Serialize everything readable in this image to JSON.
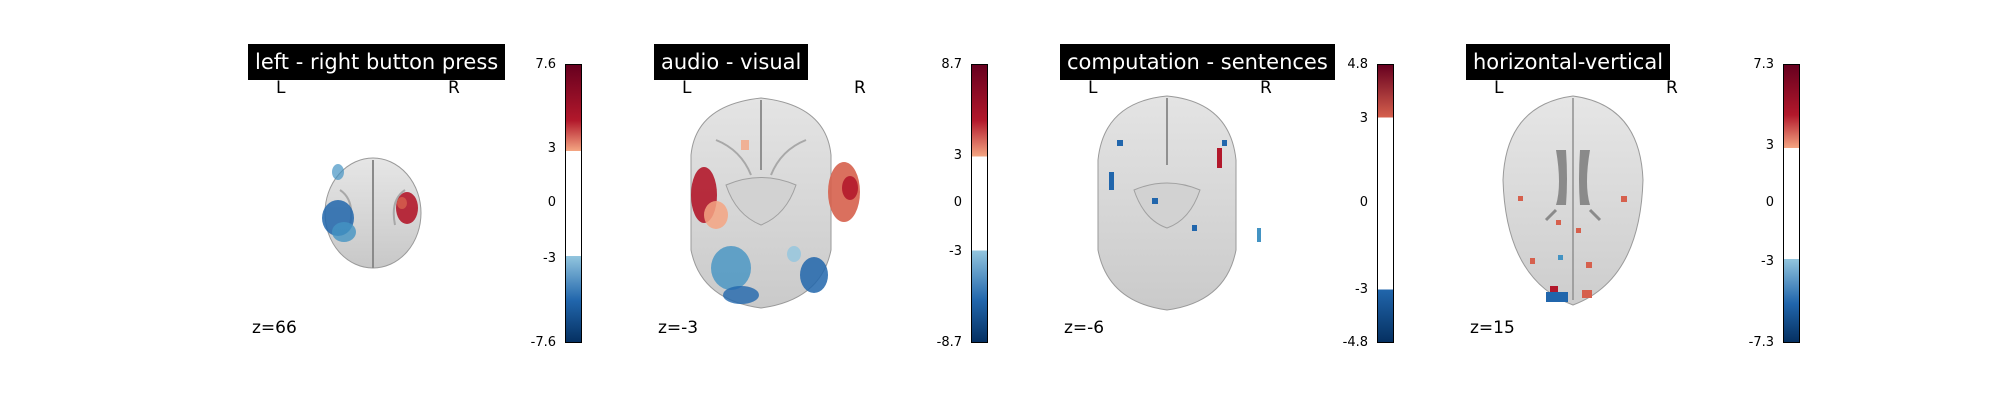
{
  "panels": [
    {
      "title": "left - right button press",
      "left": "L",
      "right": "R",
      "z": "z=66",
      "cbar": {
        "max": "7.6",
        "pos": "3",
        "zero": "0",
        "neg": "-3",
        "min": "-7.6"
      }
    },
    {
      "title": "audio - visual",
      "left": "L",
      "right": "R",
      "z": "z=-3",
      "cbar": {
        "max": "8.7",
        "pos": "3",
        "zero": "0",
        "neg": "-3",
        "min": "-8.7"
      }
    },
    {
      "title": "computation - sentences",
      "left": "L",
      "right": "R",
      "z": "z=-6",
      "cbar": {
        "max": "4.8",
        "pos": "3",
        "zero": "0",
        "neg": "-3",
        "min": "-4.8"
      }
    },
    {
      "title": "horizontal-vertical",
      "left": "L",
      "right": "R",
      "z": "z=15",
      "cbar": {
        "max": "7.3",
        "pos": "3",
        "zero": "0",
        "neg": "-3",
        "min": "-7.3"
      }
    }
  ],
  "colors": {
    "pos_dark": "#67001f",
    "pos_mid": "#d6604d",
    "pos_light": "#f4a582",
    "neg_dark": "#053061",
    "neg_mid": "#4393c3",
    "neg_light": "#92c5de"
  }
}
